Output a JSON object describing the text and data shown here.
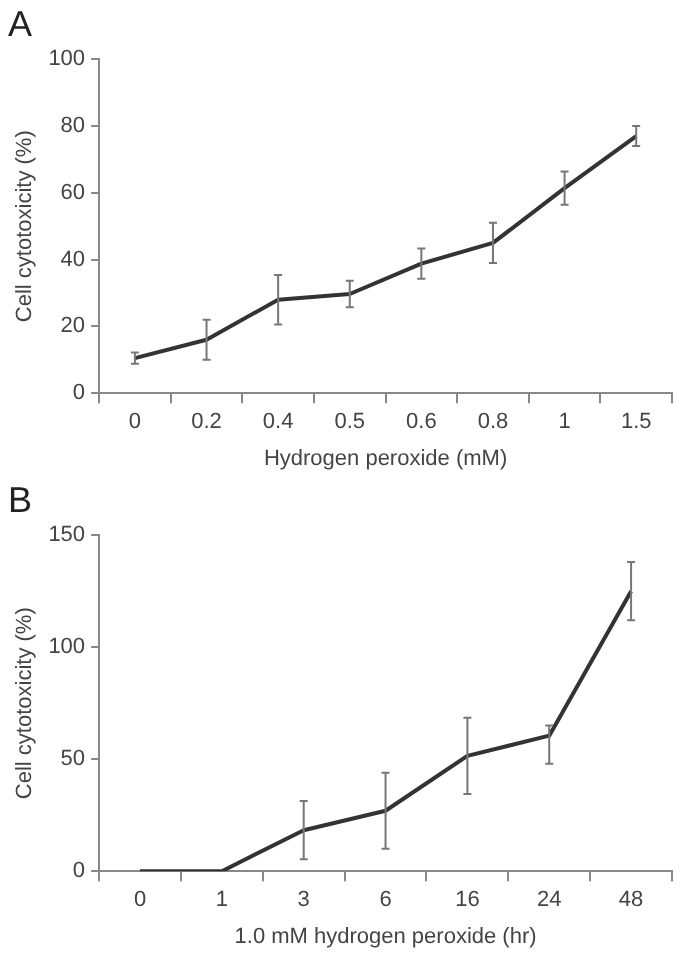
{
  "chart_data": [
    {
      "type": "line",
      "title": "A",
      "xlabel": "Hydrogen peroxide (mM)",
      "ylabel": "Cell cytotoxicity (%)",
      "categories": [
        "0",
        "0.2",
        "0.4",
        "0.5",
        "0.6",
        "0.8",
        "1",
        "1.5"
      ],
      "series": [
        {
          "color": "#333333",
          "values": [
            10.5,
            16,
            28,
            29.7,
            38.8,
            45,
            61.4,
            77
          ],
          "errors": [
            1.7,
            6,
            7.4,
            4,
            4.5,
            6,
            5,
            3
          ]
        }
      ],
      "ylim": [
        0,
        100
      ],
      "yticks": [
        0,
        20,
        40,
        60,
        80,
        100
      ],
      "grid": false,
      "legend": false,
      "marker": "none",
      "line_style": "solid"
    },
    {
      "type": "line",
      "title": "B",
      "xlabel": "1.0 mM hydrogen peroxide (hr)",
      "ylabel": "Cell cytotoxicity (%)",
      "categories": [
        "0",
        "1",
        "3",
        "6",
        "16",
        "24",
        "48"
      ],
      "series": [
        {
          "color": "#333333",
          "values": [
            0,
            0,
            18.3,
            27,
            51.5,
            60.5,
            125
          ],
          "errors": [
            null,
            null,
            13,
            17,
            17,
            [
              48,
              65
            ],
            13
          ]
        }
      ],
      "ylim": [
        0,
        150
      ],
      "yticks": [
        0,
        50,
        100,
        150
      ],
      "grid": false,
      "legend": false,
      "marker": "none",
      "line_style": "solid"
    }
  ]
}
